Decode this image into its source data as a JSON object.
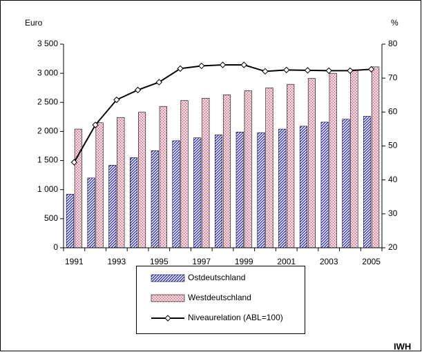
{
  "chart_data": {
    "type": "bar_line",
    "y_label": "Euro",
    "y2_label": "%",
    "source": "IWH",
    "categories": [
      "1991",
      null,
      "1993",
      null,
      "1995",
      null,
      "1997",
      null,
      "1999",
      null,
      "2001",
      null,
      "2003",
      null,
      "2005"
    ],
    "series": [
      {
        "name": "Ostdeutschland",
        "type": "bar",
        "color": "#1c1ccc",
        "values": [
          920,
          1200,
          1420,
          1550,
          1670,
          1840,
          1890,
          1940,
          1990,
          1980,
          2040,
          2090,
          2160,
          2210,
          2260
        ]
      },
      {
        "name": "Westdeutschland",
        "type": "bar",
        "color": "#f2cbd4",
        "values": [
          2040,
          2150,
          2240,
          2330,
          2430,
          2530,
          2570,
          2630,
          2700,
          2750,
          2810,
          2910,
          3000,
          3060,
          3110
        ]
      },
      {
        "name": "Niveaurelation (ABL=100)",
        "type": "line",
        "axis": "y2",
        "color": "#000000",
        "values": [
          45.2,
          56.2,
          63.6,
          66.5,
          68.8,
          72.8,
          73.6,
          73.9,
          73.9,
          72.0,
          72.4,
          72.3,
          72.2,
          72.2,
          72.6
        ]
      }
    ],
    "ylim": [
      0,
      3500
    ],
    "yticks": [
      0,
      500,
      {
        "value": 1000,
        "label": "1 000"
      },
      {
        "value": 1500,
        "label": "1 500"
      },
      {
        "value": 2000,
        "label": "2 000"
      },
      {
        "value": 2500,
        "label": "2 500"
      },
      {
        "value": 3000,
        "label": "3 000"
      },
      {
        "value": 3500,
        "label": "3 500"
      }
    ],
    "y2lim": [
      20,
      80
    ],
    "y2ticks": [
      20,
      30,
      40,
      50,
      60,
      70,
      80
    ],
    "grid": false
  }
}
